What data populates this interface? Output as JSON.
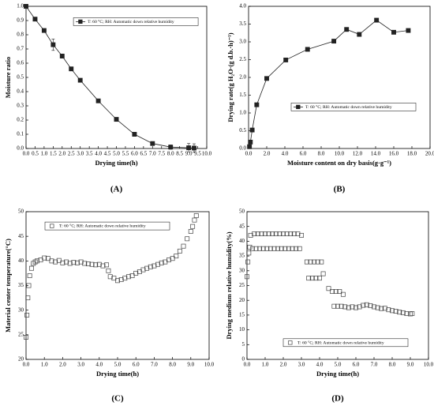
{
  "chart_data": [
    {
      "type": "line",
      "panel_label": "(A)",
      "x_label": "Drying time(h)",
      "y_label": "Moisture ratio",
      "legend": "upper center",
      "marker": "filled-square",
      "x": [
        0,
        0.5,
        1,
        1.5,
        2,
        2.5,
        3,
        4,
        5,
        6,
        7,
        8,
        9,
        9.3
      ],
      "series": [
        {
          "name": "T: 60 °C; RH: Automatic down relative humidity",
          "color": "#222222",
          "values": [
            1.0,
            0.91,
            0.83,
            0.73,
            0.65,
            0.56,
            0.48,
            0.335,
            0.205,
            0.1,
            0.035,
            0.01,
            0.005,
            0.003
          ],
          "errors": [
            0,
            0.005,
            0.01,
            0.04,
            0.015,
            0.01,
            0.005,
            0.005,
            0.005,
            0.005,
            0.01,
            0.015,
            0.03,
            0.03
          ]
        }
      ],
      "xlim": [
        0,
        10
      ],
      "ylim": [
        0,
        1
      ],
      "xticks": [
        {
          "value": 0,
          "label": "0.0"
        },
        {
          "value": 0.5,
          "label": "0.5"
        },
        {
          "value": 1,
          "label": "1.0"
        },
        {
          "value": 1.5,
          "label": "1.5"
        },
        {
          "value": 2,
          "label": "2.0"
        },
        {
          "value": 2.5,
          "label": "2.5"
        },
        {
          "value": 3,
          "label": "3.0"
        },
        {
          "value": 3.5,
          "label": "3.5"
        },
        {
          "value": 4,
          "label": "4.0"
        },
        {
          "value": 4.5,
          "label": "4.5"
        },
        {
          "value": 5,
          "label": "5.0"
        },
        {
          "value": 5.5,
          "label": "5.5"
        },
        {
          "value": 6,
          "label": "6.0"
        },
        {
          "value": 6.5,
          "label": "6.5"
        },
        {
          "value": 7,
          "label": "7.0"
        },
        {
          "value": 7.5,
          "label": "7.5"
        },
        {
          "value": 8,
          "label": "8.0"
        },
        {
          "value": 8.5,
          "label": "8.5"
        },
        {
          "value": 9,
          "label": "9.0"
        },
        {
          "value": 9.5,
          "label": "9.5"
        },
        {
          "value": 10,
          "label": "10.0"
        }
      ],
      "yticks": [
        {
          "value": 0,
          "label": "0.0"
        },
        {
          "value": 0.1,
          "label": "0.1"
        },
        {
          "value": 0.2,
          "label": "0.2"
        },
        {
          "value": 0.3,
          "label": "0.3"
        },
        {
          "value": 0.4,
          "label": "0.4"
        },
        {
          "value": 0.5,
          "label": "0.5"
        },
        {
          "value": 0.6,
          "label": "0.6"
        },
        {
          "value": 0.7,
          "label": "0.7"
        },
        {
          "value": 0.8,
          "label": "0.8"
        },
        {
          "value": 0.9,
          "label": "0.9"
        },
        {
          "value": 1,
          "label": "1.0"
        }
      ]
    },
    {
      "type": "line",
      "panel_label": "(B)",
      "x_label": "Moisture content on dry basis(g·g⁻¹)",
      "y_label": "Drying rate(g H₂O·(g d.b.·h)⁻¹)",
      "legend": "lower right",
      "marker": "filled-square",
      "x": [
        0.1,
        0.2,
        0.4,
        0.9,
        2.0,
        4.1,
        6.5,
        9.4,
        10.8,
        12.2,
        14.1,
        16.0,
        17.6
      ],
      "series": [
        {
          "name": "T: 60 °C; RH: Automatic down relative humidity",
          "color": "#222222",
          "values": [
            0.05,
            0.18,
            0.52,
            1.23,
            1.97,
            2.49,
            2.79,
            3.02,
            3.35,
            3.21,
            3.61,
            3.27,
            3.32
          ]
        }
      ],
      "xlim": [
        0,
        20
      ],
      "ylim": [
        0,
        4
      ],
      "xticks": [
        {
          "value": 0,
          "label": "0.0"
        },
        {
          "value": 2,
          "label": "2.0"
        },
        {
          "value": 4,
          "label": "4.0"
        },
        {
          "value": 6,
          "label": "6.0"
        },
        {
          "value": 8,
          "label": "8.0"
        },
        {
          "value": 10,
          "label": "10.0"
        },
        {
          "value": 12,
          "label": "12.0"
        },
        {
          "value": 14,
          "label": "14.0"
        },
        {
          "value": 16,
          "label": "16.0"
        },
        {
          "value": 18,
          "label": "18.0"
        },
        {
          "value": 20,
          "label": "20.0"
        }
      ],
      "yticks": [
        {
          "value": 0,
          "label": "0.0"
        },
        {
          "value": 0.5,
          "label": "0.5"
        },
        {
          "value": 1,
          "label": "1.0"
        },
        {
          "value": 1.5,
          "label": "1.5"
        },
        {
          "value": 2,
          "label": "2.0"
        },
        {
          "value": 2.5,
          "label": "2.5"
        },
        {
          "value": 3,
          "label": "3.0"
        },
        {
          "value": 3.5,
          "label": "3.5"
        },
        {
          "value": 4,
          "label": "4.0"
        }
      ]
    },
    {
      "type": "scatter",
      "panel_label": "(C)",
      "x_label": "Drying time(h)",
      "y_label": "Material center temperature(°C)",
      "legend": "upper center",
      "marker": "open-square",
      "x": [
        0,
        0.05,
        0.1,
        0.15,
        0.2,
        0.3,
        0.4,
        0.5,
        0.6,
        0.8,
        1.0,
        1.2,
        1.4,
        1.6,
        1.8,
        2.0,
        2.2,
        2.4,
        2.6,
        2.8,
        3.0,
        3.2,
        3.4,
        3.6,
        3.8,
        4.0,
        4.2,
        4.4,
        4.5,
        4.6,
        4.8,
        5.0,
        5.2,
        5.4,
        5.6,
        5.8,
        6.0,
        6.2,
        6.4,
        6.6,
        6.8,
        7.0,
        7.2,
        7.4,
        7.6,
        7.8,
        8.0,
        8.2,
        8.4,
        8.6,
        8.8,
        9.0,
        9.1,
        9.2,
        9.3
      ],
      "series": [
        {
          "name": "T: 60 °C; RH: Automatic down relative humidity",
          "color": "#444444",
          "values": [
            24.5,
            29,
            32.5,
            35,
            37,
            38.5,
            39.5,
            39.8,
            40,
            40.2,
            40.6,
            40.5,
            40,
            39.8,
            40.1,
            39.6,
            39.8,
            39.5,
            39.7,
            39.6,
            39.8,
            39.5,
            39.4,
            39.3,
            39.2,
            39.3,
            39.0,
            39.2,
            38,
            36.8,
            36.5,
            36.0,
            36.2,
            36.5,
            36.8,
            37.0,
            37.5,
            37.8,
            38.2,
            38.5,
            38.8,
            39.0,
            39.3,
            39.6,
            39.8,
            40.2,
            40.5,
            41,
            42,
            43,
            44.5,
            46,
            47,
            48.3,
            49.2
          ]
        }
      ],
      "xlim": [
        0,
        10
      ],
      "ylim": [
        20,
        50
      ],
      "xticks": [
        {
          "value": 0,
          "label": "0.0"
        },
        {
          "value": 1,
          "label": "1.0"
        },
        {
          "value": 2,
          "label": "2.0"
        },
        {
          "value": 3,
          "label": "3.0"
        },
        {
          "value": 4,
          "label": "4.0"
        },
        {
          "value": 5,
          "label": "5.0"
        },
        {
          "value": 6,
          "label": "6.0"
        },
        {
          "value": 7,
          "label": "7.0"
        },
        {
          "value": 8,
          "label": "8.0"
        },
        {
          "value": 9,
          "label": "9.0"
        },
        {
          "value": 10,
          "label": "10.0"
        }
      ],
      "yticks": [
        20,
        25,
        30,
        35,
        40,
        45,
        50
      ]
    },
    {
      "type": "scatter",
      "panel_label": "(D)",
      "x_label": "Drying time(h)",
      "y_label": "Drying medium relative humidity(%)",
      "legend": "lower center",
      "marker": "open-square",
      "x": [
        0,
        0.05,
        0.1,
        0.15,
        0.2,
        0.3,
        0.4,
        0.5,
        0.6,
        0.7,
        0.8,
        0.9,
        1.0,
        1.1,
        1.2,
        1.3,
        1.4,
        1.5,
        1.6,
        1.7,
        1.8,
        1.9,
        2.0,
        2.1,
        2.2,
        2.3,
        2.4,
        2.5,
        2.6,
        2.7,
        2.8,
        2.9,
        3.0,
        3.3,
        3.4,
        3.5,
        3.6,
        3.7,
        3.8,
        3.9,
        4.0,
        4.1,
        4.2,
        4.5,
        4.7,
        4.8,
        4.9,
        5.0,
        5.1,
        5.2,
        5.3,
        5.4,
        5.6,
        5.8,
        6.0,
        6.2,
        6.4,
        6.6,
        6.8,
        7.0,
        7.2,
        7.4,
        7.6,
        7.8,
        8.0,
        8.2,
        8.4,
        8.6,
        8.8,
        9.0,
        9.1
      ],
      "series": [
        {
          "name": "T: 60 °C; RH: Automatic down relative humidity",
          "color": "#444444",
          "values": [
            28,
            33,
            36,
            38,
            42,
            37.5,
            42.5,
            37.5,
            42.5,
            37.5,
            42.5,
            37.5,
            42.5,
            37.5,
            42.5,
            37.5,
            42.5,
            37.5,
            42.5,
            37.5,
            42.5,
            37.5,
            42.5,
            37.5,
            42.5,
            37.5,
            42.5,
            37.5,
            42.5,
            37.5,
            42.5,
            37.5,
            42,
            33,
            27.5,
            33,
            27.5,
            33,
            27.5,
            33,
            27.5,
            33,
            29,
            24,
            23,
            18,
            23,
            18,
            23,
            18,
            22,
            17.8,
            17.5,
            17.8,
            17.5,
            17.8,
            18.3,
            18.5,
            18.2,
            17.8,
            17.5,
            17.2,
            17.3,
            16.8,
            16.5,
            16.3,
            16.0,
            15.8,
            15.5,
            15.4,
            15.5
          ]
        }
      ],
      "xlim": [
        0,
        10
      ],
      "ylim": [
        0,
        50
      ],
      "xticks": [
        {
          "value": 0,
          "label": "0.0"
        },
        {
          "value": 1,
          "label": "1.0"
        },
        {
          "value": 2,
          "label": "2.0"
        },
        {
          "value": 3,
          "label": "3.0"
        },
        {
          "value": 4,
          "label": "4.0"
        },
        {
          "value": 5,
          "label": "5.0"
        },
        {
          "value": 6,
          "label": "6.0"
        },
        {
          "value": 7,
          "label": "7.0"
        },
        {
          "value": 8,
          "label": "8.0"
        },
        {
          "value": 9,
          "label": "9.0"
        },
        {
          "value": 10,
          "label": "10.0"
        }
      ],
      "yticks": [
        0,
        5,
        10,
        15,
        20,
        25,
        30,
        35,
        40,
        45,
        50
      ]
    }
  ]
}
